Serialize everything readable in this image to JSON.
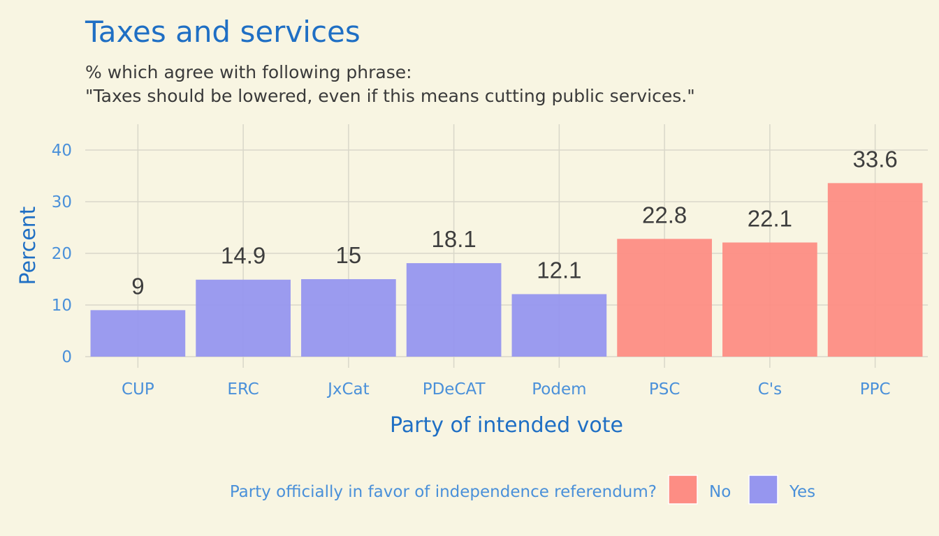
{
  "chart_data": {
    "type": "bar",
    "title": "Taxes and services",
    "subtitle": [
      "% which agree with following phrase:",
      "\"Taxes should be lowered, even if this means cutting public services.\""
    ],
    "xlabel": "Party of intended vote",
    "ylabel": "Percent",
    "ylim": [
      0,
      45
    ],
    "yticks": [
      0,
      10,
      20,
      30,
      40
    ],
    "categories": [
      "CUP",
      "ERC",
      "JxCat",
      "PDeCAT",
      "Podem",
      "PSC",
      "C's",
      "PPC"
    ],
    "values": [
      9,
      14.9,
      15,
      18.1,
      12.1,
      22.8,
      22.1,
      33.6
    ],
    "value_labels": [
      "9",
      "14.9",
      "15",
      "18.1",
      "12.1",
      "22.8",
      "22.1",
      "33.6"
    ],
    "group": [
      "Yes",
      "Yes",
      "Yes",
      "Yes",
      "Yes",
      "No",
      "No",
      "No"
    ],
    "grid": true,
    "legend": {
      "position": "bottom",
      "title": "Party officially in favor of independence referendum?",
      "items": [
        {
          "label": "No",
          "color": "#fd8d84"
        },
        {
          "label": "Yes",
          "color": "#9696ef"
        }
      ]
    },
    "colors": {
      "No": "#fd8d84",
      "Yes": "#9696ef"
    }
  }
}
